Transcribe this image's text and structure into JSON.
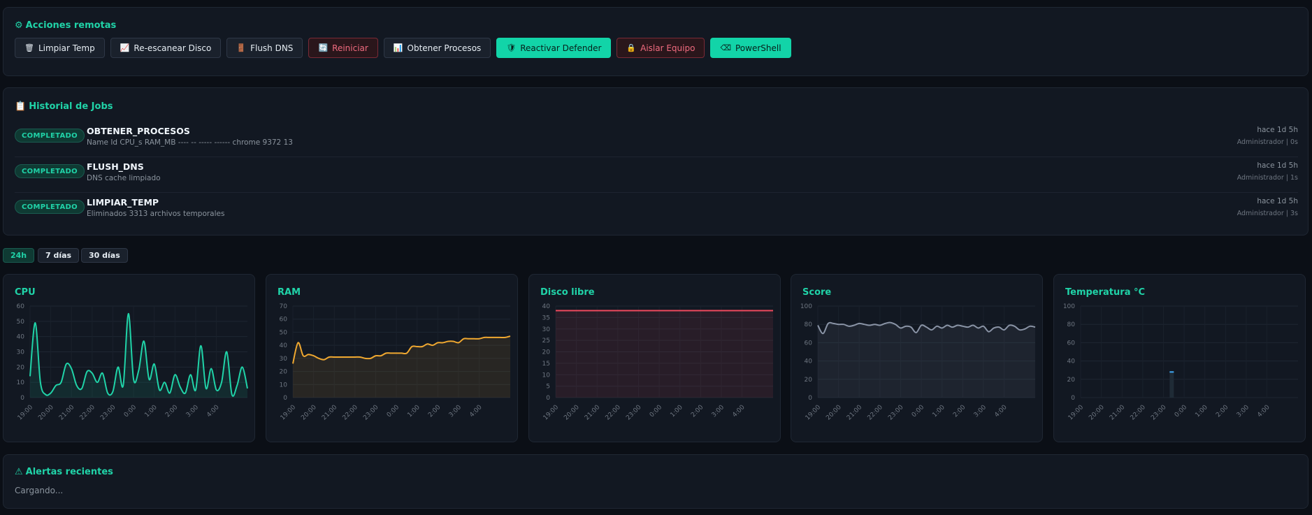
{
  "actions": {
    "title": "Acciones remotas",
    "title_icon": "⚙",
    "buttons": [
      {
        "label": "Limpiar Temp",
        "icon": "🗑",
        "style": "default"
      },
      {
        "label": "Re-escanear Disco",
        "icon": "📈",
        "style": "default"
      },
      {
        "label": "Flush DNS",
        "icon": "🚪",
        "style": "default"
      },
      {
        "label": "Reiniciar",
        "icon": "🔄",
        "style": "danger"
      },
      {
        "label": "Obtener Procesos",
        "icon": "📊",
        "style": "default"
      },
      {
        "label": "Reactivar Defender",
        "icon": "🛡",
        "style": "primary"
      },
      {
        "label": "Aislar Equipo",
        "icon": "🔒",
        "style": "danger"
      },
      {
        "label": "PowerShell",
        "icon": "⌫",
        "style": "primary"
      }
    ]
  },
  "jobs": {
    "title": "Historial de Jobs",
    "title_icon": "📋",
    "items": [
      {
        "status": "COMPLETADO",
        "name": "OBTENER_PROCESOS",
        "detail": "Name Id CPU_s RAM_MB ---- -- ----- ------ chrome 9372 13",
        "time": "hace 1d 5h",
        "meta": "Administrador | 0s"
      },
      {
        "status": "COMPLETADO",
        "name": "FLUSH_DNS",
        "detail": "DNS cache limpiado",
        "time": "hace 1d 5h",
        "meta": "Administrador | 1s"
      },
      {
        "status": "COMPLETADO",
        "name": "LIMPIAR_TEMP",
        "detail": "Eliminados 3313 archivos temporales",
        "time": "hace 1d 5h",
        "meta": "Administrador | 3s"
      }
    ]
  },
  "range_tabs": [
    {
      "label": "24h",
      "active": true
    },
    {
      "label": "7 días",
      "active": false
    },
    {
      "label": "30 días",
      "active": false
    }
  ],
  "chart_data": [
    {
      "type": "area",
      "title": "CPU",
      "color": "#20d3a8",
      "x_ticks": [
        "19:00",
        "20:00",
        "21:00",
        "22:00",
        "23:00",
        "0:00",
        "1:00",
        "2:00",
        "3:00",
        "4:00"
      ],
      "ylim": [
        0,
        60
      ],
      "y_ticks": [
        0,
        10,
        20,
        30,
        40,
        50,
        60
      ],
      "x_range": [
        0,
        10.5
      ],
      "x": [
        0,
        0.25,
        0.5,
        0.75,
        1,
        1.25,
        1.5,
        1.75,
        2,
        2.25,
        2.5,
        2.75,
        3,
        3.25,
        3.5,
        3.75,
        4,
        4.25,
        4.5,
        4.75,
        5,
        5.25,
        5.5,
        5.75,
        6,
        6.25,
        6.5,
        6.75,
        7,
        7.25,
        7.5,
        7.75,
        8,
        8.25,
        8.5,
        8.75,
        9,
        9.25,
        9.5,
        9.75,
        10,
        10.25,
        10.5
      ],
      "y": [
        14,
        49,
        10,
        2,
        3,
        8,
        10,
        22,
        19,
        8,
        6,
        17,
        16,
        10,
        16,
        3,
        4,
        20,
        8,
        55,
        12,
        18,
        37,
        12,
        22,
        5,
        10,
        3,
        15,
        7,
        3,
        15,
        5,
        34,
        6,
        19,
        5,
        10,
        30,
        2,
        8,
        20,
        6
      ]
    },
    {
      "type": "area",
      "title": "RAM",
      "color": "#f0a830",
      "x_ticks": [
        "19:00",
        "20:00",
        "21:00",
        "22:00",
        "23:00",
        "0:00",
        "1:00",
        "2:00",
        "3:00",
        "4:00"
      ],
      "ylim": [
        0,
        70
      ],
      "y_ticks": [
        0,
        10,
        20,
        30,
        40,
        50,
        60,
        70
      ],
      "x_range": [
        0,
        10.5
      ],
      "x": [
        0,
        0.25,
        0.5,
        0.75,
        1,
        1.25,
        1.5,
        1.75,
        2,
        2.25,
        2.5,
        2.75,
        3,
        3.25,
        3.5,
        3.75,
        4,
        4.25,
        4.5,
        4.75,
        5,
        5.25,
        5.5,
        5.75,
        6,
        6.25,
        6.5,
        6.75,
        7,
        7.25,
        7.5,
        7.75,
        8,
        8.25,
        8.5,
        8.75,
        9,
        9.25,
        9.5,
        9.75,
        10,
        10.25,
        10.5
      ],
      "y": [
        26,
        42,
        32,
        33,
        32,
        30,
        29,
        31,
        31,
        31,
        31,
        31,
        31,
        31,
        30,
        30,
        32,
        32,
        34,
        34,
        34,
        34,
        34,
        39,
        39,
        39,
        41,
        40,
        42,
        42,
        43,
        43,
        42,
        45,
        45,
        45,
        45,
        46,
        46,
        46,
        46,
        46,
        47
      ]
    },
    {
      "type": "area",
      "title": "Disco libre",
      "color": "#f04a5e",
      "x_ticks": [
        "19:00",
        "20:00",
        "21:00",
        "22:00",
        "23:00",
        "0:00",
        "1:00",
        "2:00",
        "3:00",
        "4:00"
      ],
      "ylim": [
        0,
        40
      ],
      "y_ticks": [
        0,
        5,
        10,
        15,
        20,
        25,
        30,
        35,
        40
      ],
      "x_range": [
        0,
        10.5
      ],
      "x": [
        0,
        10.5
      ],
      "y": [
        38,
        38
      ]
    },
    {
      "type": "area",
      "title": "Score",
      "color": "#8a94a6",
      "x_ticks": [
        "19:00",
        "20:00",
        "21:00",
        "22:00",
        "23:00",
        "0:00",
        "1:00",
        "2:00",
        "3:00",
        "4:00"
      ],
      "ylim": [
        0,
        100
      ],
      "y_ticks": [
        0,
        20,
        40,
        60,
        80,
        100
      ],
      "x_range": [
        0,
        10.5
      ],
      "x": [
        0,
        0.25,
        0.5,
        0.75,
        1,
        1.25,
        1.5,
        1.75,
        2,
        2.25,
        2.5,
        2.75,
        3,
        3.25,
        3.5,
        3.75,
        4,
        4.25,
        4.5,
        4.75,
        5,
        5.25,
        5.5,
        5.75,
        6,
        6.25,
        6.5,
        6.75,
        7,
        7.25,
        7.5,
        7.75,
        8,
        8.25,
        8.5,
        8.75,
        9,
        9.25,
        9.5,
        9.75,
        10,
        10.25,
        10.5
      ],
      "y": [
        79,
        70,
        81,
        81,
        80,
        80,
        78,
        79,
        81,
        80,
        79,
        80,
        79,
        81,
        82,
        80,
        76,
        78,
        77,
        71,
        79,
        77,
        74,
        78,
        76,
        79,
        77,
        79,
        78,
        77,
        79,
        76,
        78,
        72,
        76,
        77,
        74,
        79,
        78,
        74,
        75,
        78,
        77
      ]
    },
    {
      "type": "bar",
      "title": "Temperatura °C",
      "color": "#3fa9f5",
      "x_ticks": [
        "19:00",
        "20:00",
        "21:00",
        "22:00",
        "23:00",
        "0:00",
        "1:00",
        "2:00",
        "3:00",
        "4:00"
      ],
      "ylim": [
        0,
        100
      ],
      "y_ticks": [
        0,
        20,
        40,
        60,
        80,
        100
      ],
      "x_range": [
        0,
        10.5
      ],
      "x": [
        4.4
      ],
      "y": [
        28
      ]
    }
  ],
  "alerts": {
    "title": "Alertas recientes",
    "title_icon": "⚠",
    "status": "Cargando..."
  }
}
